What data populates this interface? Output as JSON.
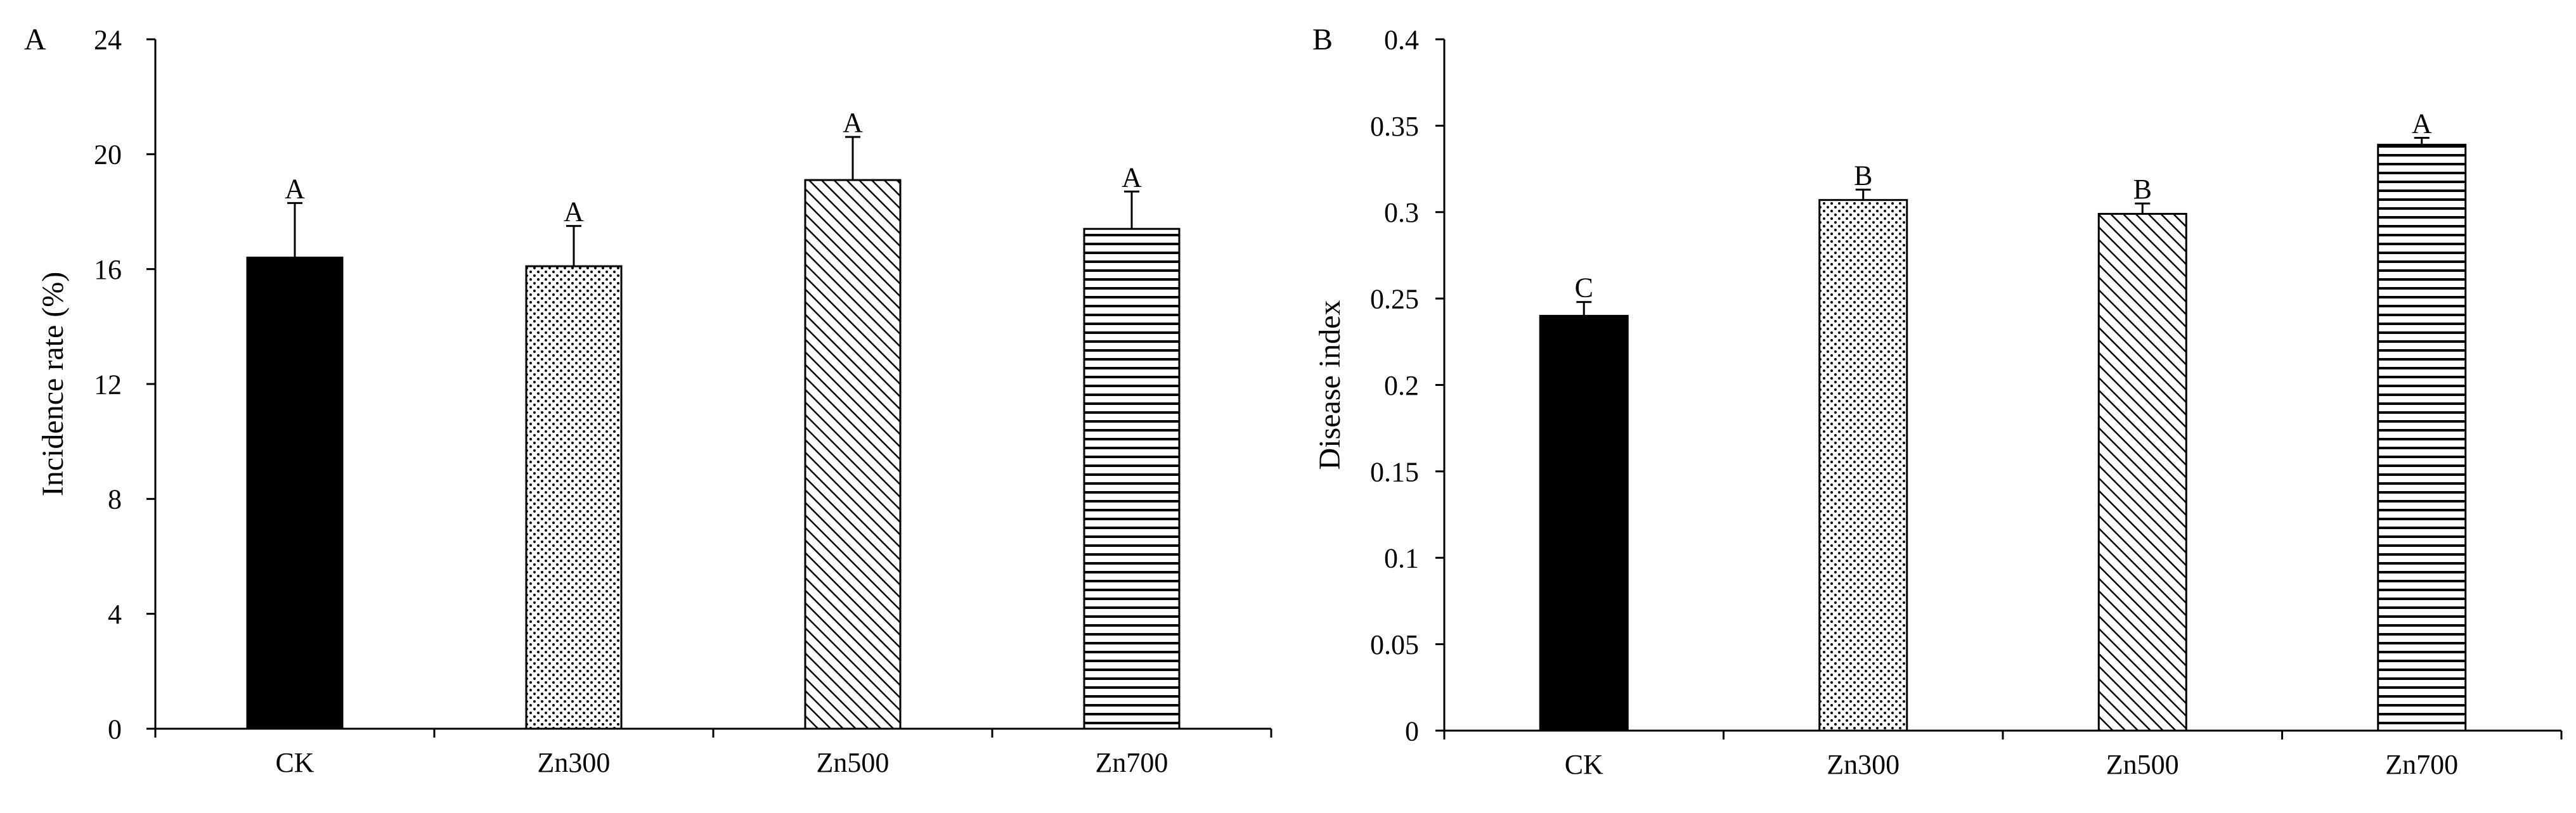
{
  "chart_data": [
    {
      "type": "bar",
      "panel_label": "A",
      "categories": [
        "CK",
        "Zn300",
        "Zn500",
        "Zn700"
      ],
      "values": [
        16.4,
        16.1,
        19.1,
        17.4
      ],
      "errors": [
        1.9,
        1.4,
        1.5,
        1.3
      ],
      "significance": [
        "A",
        "A",
        "A",
        "A"
      ],
      "patterns": [
        "solid",
        "dots",
        "diagonal",
        "horizontal"
      ],
      "ylabel": "Incidence rate (%)",
      "xlabel": "",
      "ylim": [
        0,
        24
      ],
      "yticks": [
        0,
        4,
        8,
        12,
        16,
        20,
        24
      ],
      "ytick_labels": [
        "0",
        "4",
        "8",
        "12",
        "16",
        "20",
        "24"
      ]
    },
    {
      "type": "bar",
      "panel_label": "B",
      "categories": [
        "CK",
        "Zn300",
        "Zn500",
        "Zn700"
      ],
      "values": [
        0.24,
        0.307,
        0.299,
        0.339
      ],
      "errors": [
        0.008,
        0.006,
        0.006,
        0.004
      ],
      "significance": [
        "C",
        "B",
        "B",
        "A"
      ],
      "patterns": [
        "solid",
        "dots",
        "diagonal",
        "horizontal"
      ],
      "ylabel": "Disease index",
      "xlabel": "",
      "ylim": [
        0,
        0.4
      ],
      "yticks": [
        0,
        0.05,
        0.1,
        0.15,
        0.2,
        0.25,
        0.3,
        0.35,
        0.4
      ],
      "ytick_labels": [
        "0",
        "0.05",
        "0.1",
        "0.15",
        "0.2",
        "0.25",
        "0.3",
        "0.35",
        "0.4"
      ]
    }
  ],
  "colors": {
    "ink": "#000000",
    "background": "#ffffff"
  }
}
